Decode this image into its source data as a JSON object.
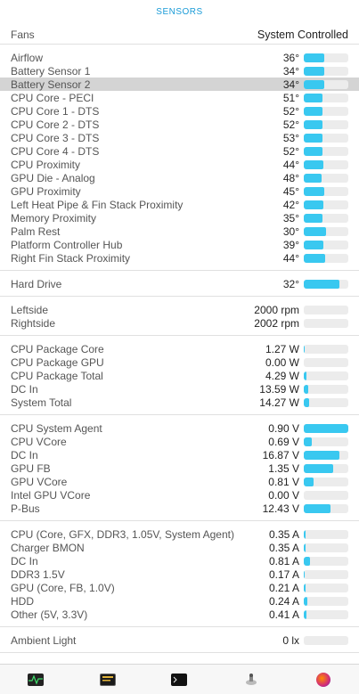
{
  "header": {
    "title": "SENSORS"
  },
  "fans": {
    "label": "Fans",
    "value": "System Controlled"
  },
  "sections": [
    {
      "id": "temperatures",
      "rows": [
        {
          "name": "Airflow",
          "value": "36°",
          "level": 0.45
        },
        {
          "name": "Battery Sensor 1",
          "value": "34°",
          "level": 0.45
        },
        {
          "name": "Battery Sensor 2",
          "value": "34°",
          "level": 0.45,
          "highlight": true
        },
        {
          "name": "CPU Core - PECI",
          "value": "51°",
          "level": 0.42
        },
        {
          "name": "CPU Core 1 - DTS",
          "value": "52°",
          "level": 0.42
        },
        {
          "name": "CPU Core 2 - DTS",
          "value": "52°",
          "level": 0.42
        },
        {
          "name": "CPU Core 3 - DTS",
          "value": "53°",
          "level": 0.42
        },
        {
          "name": "CPU Core 4 - DTS",
          "value": "52°",
          "level": 0.42
        },
        {
          "name": "CPU Proximity",
          "value": "44°",
          "level": 0.44
        },
        {
          "name": "GPU Die - Analog",
          "value": "48°",
          "level": 0.4
        },
        {
          "name": "GPU Proximity",
          "value": "45°",
          "level": 0.46
        },
        {
          "name": "Left Heat Pipe & Fin Stack Proximity",
          "value": "42°",
          "level": 0.44
        },
        {
          "name": "Memory Proximity",
          "value": "35°",
          "level": 0.42
        },
        {
          "name": "Palm Rest",
          "value": "30°",
          "level": 0.5
        },
        {
          "name": "Platform Controller Hub",
          "value": "39°",
          "level": 0.44
        },
        {
          "name": "Right Fin Stack Proximity",
          "value": "44°",
          "level": 0.48
        }
      ]
    },
    {
      "id": "hard-drive",
      "rows": [
        {
          "name": "Hard Drive",
          "value": "32°",
          "level": 0.8
        }
      ]
    },
    {
      "id": "fan-speeds",
      "rows": [
        {
          "name": "Leftside",
          "value": "2000 rpm",
          "level": 0.0
        },
        {
          "name": "Rightside",
          "value": "2002 rpm",
          "level": 0.0
        }
      ]
    },
    {
      "id": "power",
      "rows": [
        {
          "name": "CPU Package Core",
          "value": "1.27 W",
          "level": 0.02
        },
        {
          "name": "CPU Package GPU",
          "value": "0.00 W",
          "level": 0.0
        },
        {
          "name": "CPU Package Total",
          "value": "4.29 W",
          "level": 0.06
        },
        {
          "name": "DC In",
          "value": "13.59 W",
          "level": 0.1
        },
        {
          "name": "System Total",
          "value": "14.27 W",
          "level": 0.12
        }
      ]
    },
    {
      "id": "voltage",
      "rows": [
        {
          "name": "CPU System Agent",
          "value": "0.90 V",
          "level": 1.0
        },
        {
          "name": "CPU VCore",
          "value": "0.69 V",
          "level": 0.18
        },
        {
          "name": "DC In",
          "value": "16.87 V",
          "level": 0.8
        },
        {
          "name": "GPU FB",
          "value": "1.35 V",
          "level": 0.66
        },
        {
          "name": "GPU VCore",
          "value": "0.81 V",
          "level": 0.22
        },
        {
          "name": "Intel GPU VCore",
          "value": "0.00 V",
          "level": 0.0
        },
        {
          "name": "P-Bus",
          "value": "12.43 V",
          "level": 0.6
        }
      ]
    },
    {
      "id": "current",
      "rows": [
        {
          "name": "CPU (Core, GFX, DDR3, 1.05V, System Agent)",
          "value": "0.35 A",
          "level": 0.04
        },
        {
          "name": "Charger BMON",
          "value": "0.35 A",
          "level": 0.04
        },
        {
          "name": "DC In",
          "value": "0.81 A",
          "level": 0.14
        },
        {
          "name": "DDR3 1.5V",
          "value": "0.17 A",
          "level": 0.02
        },
        {
          "name": "GPU (Core, FB, 1.0V)",
          "value": "0.21 A",
          "level": 0.03
        },
        {
          "name": "HDD",
          "value": "0.24 A",
          "level": 0.08
        },
        {
          "name": "Other (5V, 3.3V)",
          "value": "0.41 A",
          "level": 0.06
        }
      ]
    },
    {
      "id": "ambient",
      "rows": [
        {
          "name": "Ambient Light",
          "value": "0 lx",
          "level": 0.0
        }
      ]
    }
  ],
  "tabs": [
    {
      "name": "activity-monitor-icon",
      "cls": "ico-activity"
    },
    {
      "name": "console-icon",
      "cls": "ico-console"
    },
    {
      "name": "terminal-icon",
      "cls": "ico-terminal"
    },
    {
      "name": "disk-utility-icon",
      "cls": "ico-disk"
    },
    {
      "name": "network-globe-icon",
      "cls": "ico-globe"
    }
  ],
  "colors": {
    "accent": "#39c8f0",
    "header": "#1a9bd7",
    "track": "#ececec",
    "highlight": "#d4d4d4"
  }
}
